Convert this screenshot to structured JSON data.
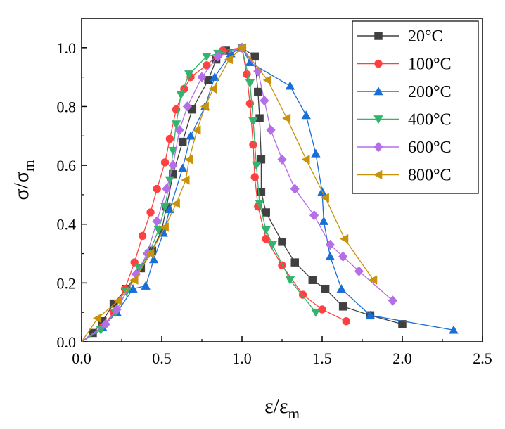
{
  "chart_data": {
    "type": "line",
    "title": "",
    "xlabel": {
      "main": "ε/ε",
      "sub": "m"
    },
    "ylabel": {
      "main": "σ/σ",
      "sub": "m"
    },
    "xlim": [
      0.0,
      2.5
    ],
    "ylim": [
      0.0,
      1.1
    ],
    "xticks": [
      "0.0",
      "0.5",
      "1.0",
      "1.5",
      "2.0",
      "2.5"
    ],
    "yticks": [
      "0.0",
      "0.2",
      "0.4",
      "0.6",
      "0.8",
      "1.0"
    ],
    "grid": false,
    "legend_position": "top-right",
    "series": [
      {
        "name": "20°C",
        "color": "#404040",
        "marker": "square",
        "points": [
          [
            0,
            0
          ],
          [
            0.07,
            0.03
          ],
          [
            0.13,
            0.07
          ],
          [
            0.2,
            0.13
          ],
          [
            0.28,
            0.18
          ],
          [
            0.37,
            0.25
          ],
          [
            0.44,
            0.31
          ],
          [
            0.5,
            0.38
          ],
          [
            0.53,
            0.46
          ],
          [
            0.57,
            0.57
          ],
          [
            0.63,
            0.68
          ],
          [
            0.69,
            0.79
          ],
          [
            0.79,
            0.89
          ],
          [
            0.84,
            0.96
          ],
          [
            0.9,
            0.99
          ],
          [
            1.0,
            1.0
          ],
          [
            1.08,
            0.97
          ],
          [
            1.1,
            0.85
          ],
          [
            1.11,
            0.76
          ],
          [
            1.12,
            0.62
          ],
          [
            1.12,
            0.51
          ],
          [
            1.15,
            0.44
          ],
          [
            1.25,
            0.34
          ],
          [
            1.33,
            0.27
          ],
          [
            1.44,
            0.21
          ],
          [
            1.52,
            0.18
          ],
          [
            1.63,
            0.12
          ],
          [
            1.8,
            0.09
          ],
          [
            2.0,
            0.06
          ]
        ]
      },
      {
        "name": "100°C",
        "color": "#ff4040",
        "marker": "circle",
        "points": [
          [
            0,
            0
          ],
          [
            0.13,
            0.05
          ],
          [
            0.2,
            0.1
          ],
          [
            0.27,
            0.18
          ],
          [
            0.33,
            0.27
          ],
          [
            0.38,
            0.36
          ],
          [
            0.43,
            0.44
          ],
          [
            0.47,
            0.52
          ],
          [
            0.52,
            0.61
          ],
          [
            0.55,
            0.69
          ],
          [
            0.59,
            0.79
          ],
          [
            0.64,
            0.86
          ],
          [
            0.68,
            0.9
          ],
          [
            0.78,
            0.94
          ],
          [
            0.88,
            0.99
          ],
          [
            1.0,
            1.0
          ],
          [
            1.03,
            0.91
          ],
          [
            1.05,
            0.81
          ],
          [
            1.07,
            0.67
          ],
          [
            1.08,
            0.56
          ],
          [
            1.1,
            0.46
          ],
          [
            1.15,
            0.35
          ],
          [
            1.25,
            0.26
          ],
          [
            1.38,
            0.16
          ],
          [
            1.5,
            0.11
          ],
          [
            1.65,
            0.07
          ]
        ]
      },
      {
        "name": "200°C",
        "color": "#1a6fd6",
        "marker": "triangle-up",
        "points": [
          [
            0,
            0
          ],
          [
            0.13,
            0.05
          ],
          [
            0.22,
            0.1
          ],
          [
            0.32,
            0.18
          ],
          [
            0.4,
            0.19
          ],
          [
            0.45,
            0.28
          ],
          [
            0.51,
            0.37
          ],
          [
            0.55,
            0.45
          ],
          [
            0.63,
            0.59
          ],
          [
            0.68,
            0.7
          ],
          [
            0.77,
            0.8
          ],
          [
            0.83,
            0.9
          ],
          [
            0.93,
            0.98
          ],
          [
            1.0,
            1.0
          ],
          [
            1.05,
            0.95
          ],
          [
            1.3,
            0.87
          ],
          [
            1.4,
            0.77
          ],
          [
            1.46,
            0.64
          ],
          [
            1.5,
            0.51
          ],
          [
            1.51,
            0.41
          ],
          [
            1.55,
            0.29
          ],
          [
            1.62,
            0.18
          ],
          [
            1.8,
            0.09
          ],
          [
            2.32,
            0.04
          ]
        ]
      },
      {
        "name": "400°C",
        "color": "#34b36e",
        "marker": "triangle-down",
        "points": [
          [
            0,
            0
          ],
          [
            0.12,
            0.04
          ],
          [
            0.21,
            0.1
          ],
          [
            0.28,
            0.17
          ],
          [
            0.36,
            0.25
          ],
          [
            0.42,
            0.3
          ],
          [
            0.48,
            0.38
          ],
          [
            0.52,
            0.46
          ],
          [
            0.55,
            0.55
          ],
          [
            0.57,
            0.65
          ],
          [
            0.59,
            0.74
          ],
          [
            0.62,
            0.84
          ],
          [
            0.67,
            0.91
          ],
          [
            0.78,
            0.97
          ],
          [
            0.85,
            0.98
          ],
          [
            1.0,
            1.0
          ],
          [
            1.05,
            0.88
          ],
          [
            1.07,
            0.75
          ],
          [
            1.09,
            0.6
          ],
          [
            1.11,
            0.47
          ],
          [
            1.15,
            0.38
          ],
          [
            1.19,
            0.33
          ],
          [
            1.3,
            0.21
          ],
          [
            1.46,
            0.1
          ]
        ]
      },
      {
        "name": "600°C",
        "color": "#b56ee8",
        "marker": "diamond",
        "points": [
          [
            0,
            0
          ],
          [
            0.15,
            0.06
          ],
          [
            0.22,
            0.11
          ],
          [
            0.34,
            0.23
          ],
          [
            0.41,
            0.3
          ],
          [
            0.47,
            0.41
          ],
          [
            0.53,
            0.52
          ],
          [
            0.57,
            0.6
          ],
          [
            0.61,
            0.72
          ],
          [
            0.66,
            0.8
          ],
          [
            0.75,
            0.9
          ],
          [
            0.85,
            0.97
          ],
          [
            1.0,
            1.0
          ],
          [
            1.1,
            0.92
          ],
          [
            1.14,
            0.82
          ],
          [
            1.18,
            0.72
          ],
          [
            1.25,
            0.62
          ],
          [
            1.33,
            0.52
          ],
          [
            1.45,
            0.43
          ],
          [
            1.55,
            0.33
          ],
          [
            1.63,
            0.29
          ],
          [
            1.73,
            0.24
          ],
          [
            1.94,
            0.14
          ]
        ]
      },
      {
        "name": "800°C",
        "color": "#c8920a",
        "marker": "triangle-left",
        "points": [
          [
            0,
            0
          ],
          [
            0.1,
            0.08
          ],
          [
            0.23,
            0.14
          ],
          [
            0.33,
            0.21
          ],
          [
            0.43,
            0.3
          ],
          [
            0.52,
            0.39
          ],
          [
            0.59,
            0.47
          ],
          [
            0.65,
            0.55
          ],
          [
            0.67,
            0.62
          ],
          [
            0.72,
            0.72
          ],
          [
            0.77,
            0.8
          ],
          [
            0.82,
            0.86
          ],
          [
            0.92,
            0.96
          ],
          [
            1.0,
            1.0
          ],
          [
            1.16,
            0.89
          ],
          [
            1.28,
            0.76
          ],
          [
            1.4,
            0.62
          ],
          [
            1.52,
            0.49
          ],
          [
            1.64,
            0.35
          ],
          [
            1.82,
            0.21
          ]
        ]
      }
    ]
  }
}
